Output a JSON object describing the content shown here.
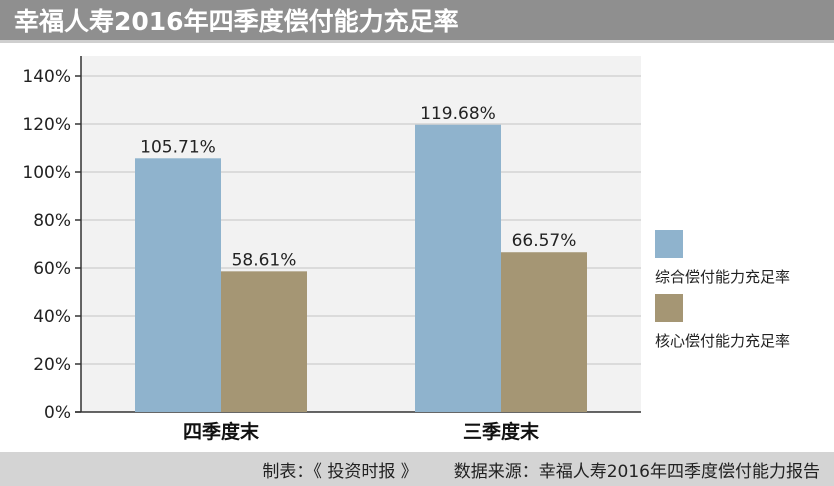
{
  "title": "幸福人寿2016年四季度偿付能力充足率",
  "footer": {
    "made_by": "制表：《 投资时报 》",
    "source": "数据来源：幸福人寿2016年四季度偿付能力报告"
  },
  "colors": {
    "title_bg": "#8f8f8f",
    "footer_bg": "#d4d4d4",
    "series_comprehensive": "#8fb3cd",
    "series_core": "#a59674"
  },
  "chart_data": {
    "type": "bar",
    "categories": [
      "四季度末",
      "三季度末"
    ],
    "series": [
      {
        "name": "综合偿付能力充足率",
        "values": [
          105.71,
          119.68
        ],
        "labels": [
          "105.71%",
          "119.68%"
        ],
        "color": "#8fb3cd"
      },
      {
        "name": "核心偿付能力充足率",
        "values": [
          58.61,
          66.57
        ],
        "labels": [
          "58.61%",
          "66.57%"
        ],
        "color": "#a59674"
      }
    ],
    "ylim": [
      0,
      140
    ],
    "yticks": [
      0,
      20,
      40,
      60,
      80,
      100,
      120,
      140
    ],
    "ytick_labels": [
      "0%",
      "20%",
      "40%",
      "60%",
      "80%",
      "100%",
      "120%",
      "140%"
    ],
    "grid": true,
    "legend_position": "right"
  }
}
